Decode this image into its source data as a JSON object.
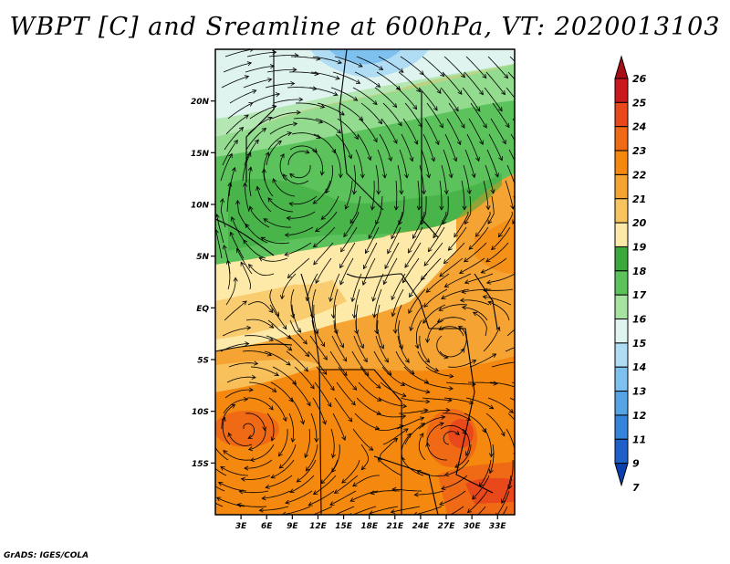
{
  "title": "WBPT [C] and Sreamline at 600hPa, VT: 2020013103",
  "credit": "GrADS: IGES/COLA",
  "map": {
    "lat_labels": [
      "20N",
      "15N",
      "10N",
      "5N",
      "EQ",
      "5S",
      "10S",
      "15S"
    ],
    "lat_values": [
      20,
      15,
      10,
      5,
      0,
      -5,
      -10,
      -15
    ],
    "lon_labels": [
      "3E",
      "6E",
      "9E",
      "12E",
      "15E",
      "18E",
      "21E",
      "24E",
      "27E",
      "30E",
      "33E"
    ],
    "lon_values": [
      3,
      6,
      9,
      12,
      15,
      18,
      21,
      24,
      27,
      30,
      33
    ],
    "lat_range": [
      -20,
      25
    ],
    "lon_range": [
      0,
      35
    ]
  },
  "colorbar": {
    "labels": [
      "26",
      "25",
      "24",
      "23",
      "22",
      "21",
      "20",
      "19",
      "18",
      "17",
      "16",
      "15",
      "14",
      "13",
      "12",
      "11",
      "9",
      "7"
    ],
    "colors": [
      "#a50f15",
      "#cb181d",
      "#e8481a",
      "#f06a16",
      "#f5880e",
      "#f5a333",
      "#f8c460",
      "#fde9a8",
      "#3aa83a",
      "#5cc35c",
      "#a6e3a0",
      "#dff4ef",
      "#b0dcf4",
      "#7fc1ee",
      "#56a3e6",
      "#3584db",
      "#1c60c8",
      "#0b3fb0"
    ]
  }
}
